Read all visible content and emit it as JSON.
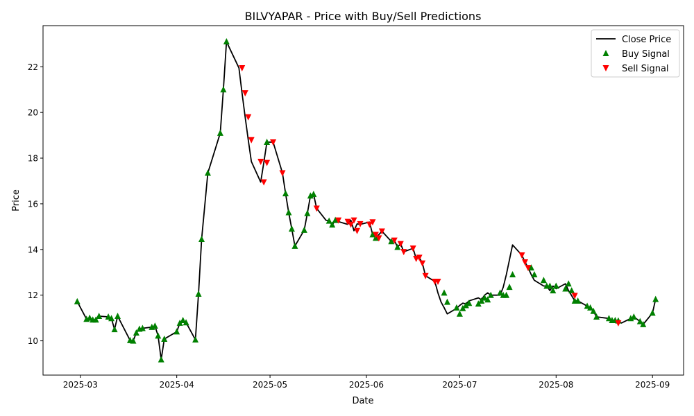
{
  "chart_data": {
    "type": "line",
    "title": "BILVYAPAR - Price with Buy/Sell Predictions",
    "xlabel": "Date",
    "ylabel": "Price",
    "x_ticks": [
      "2025-03",
      "2025-04",
      "2025-05",
      "2025-06",
      "2025-07",
      "2025-08",
      "2025-09"
    ],
    "y_ticks": [
      10,
      12,
      14,
      16,
      18,
      20,
      22
    ],
    "xlim": [
      "2025-02-17",
      "2025-09-11"
    ],
    "ylim": [
      8.5,
      23.8
    ],
    "grid": false,
    "legend_position": "top-right",
    "legend": [
      {
        "label": "Close Price",
        "marker": "line",
        "color": "#000000"
      },
      {
        "label": "Buy Signal",
        "marker": "triangle-up",
        "color": "#008000"
      },
      {
        "label": "Sell Signal",
        "marker": "triangle-down",
        "color": "#ff0000"
      }
    ],
    "series": [
      {
        "name": "Close Price",
        "color": "#000000",
        "x": [
          "2025-02-28",
          "2025-03-03",
          "2025-03-04",
          "2025-03-05",
          "2025-03-06",
          "2025-03-07",
          "2025-03-10",
          "2025-03-11",
          "2025-03-12",
          "2025-03-13",
          "2025-03-17",
          "2025-03-18",
          "2025-03-19",
          "2025-03-20",
          "2025-03-21",
          "2025-03-24",
          "2025-03-25",
          "2025-03-26",
          "2025-03-27",
          "2025-03-28",
          "2025-04-01",
          "2025-04-02",
          "2025-04-03",
          "2025-04-04",
          "2025-04-07",
          "2025-04-08",
          "2025-04-09",
          "2025-04-11",
          "2025-04-15",
          "2025-04-16",
          "2025-04-17",
          "2025-04-21",
          "2025-04-22",
          "2025-04-23",
          "2025-04-24",
          "2025-04-25",
          "2025-04-28",
          "2025-04-29",
          "2025-04-30",
          "2025-05-02",
          "2025-05-05",
          "2025-05-06",
          "2025-05-07",
          "2025-05-08",
          "2025-05-09",
          "2025-05-12",
          "2025-05-13",
          "2025-05-14",
          "2025-05-15",
          "2025-05-16",
          "2025-05-19",
          "2025-05-20",
          "2025-05-21",
          "2025-05-22",
          "2025-05-23",
          "2025-05-26",
          "2025-05-27",
          "2025-05-28",
          "2025-05-29",
          "2025-05-30",
          "2025-06-02",
          "2025-06-03",
          "2025-06-04",
          "2025-06-05",
          "2025-06-06",
          "2025-06-09",
          "2025-06-10",
          "2025-06-11",
          "2025-06-12",
          "2025-06-13",
          "2025-06-16",
          "2025-06-17",
          "2025-06-18",
          "2025-06-19",
          "2025-06-20",
          "2025-06-23",
          "2025-06-24",
          "2025-06-25",
          "2025-06-26",
          "2025-06-27",
          "2025-06-30",
          "2025-07-01",
          "2025-07-02",
          "2025-07-03",
          "2025-07-04",
          "2025-07-07",
          "2025-07-08",
          "2025-07-09",
          "2025-07-10",
          "2025-07-11",
          "2025-07-14",
          "2025-07-15",
          "2025-07-16",
          "2025-07-17",
          "2025-07-18",
          "2025-07-21",
          "2025-07-22",
          "2025-07-23",
          "2025-07-24",
          "2025-07-25",
          "2025-07-28",
          "2025-07-29",
          "2025-07-30",
          "2025-07-31",
          "2025-08-01",
          "2025-08-04",
          "2025-08-05",
          "2025-08-06",
          "2025-08-07",
          "2025-08-08",
          "2025-08-11",
          "2025-08-12",
          "2025-08-13",
          "2025-08-14",
          "2025-08-18",
          "2025-08-19",
          "2025-08-20",
          "2025-08-21",
          "2025-08-22",
          "2025-08-25",
          "2025-08-26",
          "2025-08-28",
          "2025-08-29",
          "2025-09-01",
          "2025-09-02"
        ],
        "y": [
          11.72,
          10.95,
          11.0,
          10.92,
          10.92,
          11.08,
          11.05,
          10.98,
          10.5,
          11.08,
          10.02,
          10.0,
          10.35,
          10.52,
          10.55,
          10.6,
          10.65,
          10.22,
          9.18,
          10.08,
          10.4,
          10.78,
          10.9,
          10.8,
          10.05,
          12.05,
          14.45,
          17.35,
          19.1,
          21.0,
          23.1,
          21.95,
          20.85,
          19.8,
          18.8,
          17.85,
          16.95,
          17.8,
          18.7,
          18.7,
          17.35,
          16.45,
          15.62,
          14.9,
          14.15,
          14.85,
          15.58,
          16.35,
          16.42,
          15.8,
          15.28,
          15.25,
          15.08,
          15.28,
          15.22,
          15.1,
          15.28,
          14.82,
          15.12,
          15.1,
          15.2,
          14.65,
          14.5,
          14.65,
          14.8,
          14.35,
          14.4,
          14.1,
          14.25,
          13.9,
          14.05,
          13.6,
          13.65,
          13.4,
          12.85,
          12.6,
          12.1,
          11.7,
          11.45,
          11.18,
          11.42,
          11.55,
          11.65,
          11.62,
          11.75,
          11.88,
          11.8,
          12.0,
          12.1,
          12.0,
          12.0,
          12.35,
          12.9,
          13.55,
          14.2,
          13.75,
          13.45,
          13.2,
          12.9,
          12.65,
          12.4,
          12.4,
          12.2,
          12.4,
          12.28,
          12.5,
          12.2,
          11.98,
          11.75,
          11.75,
          11.52,
          11.45,
          11.3,
          11.05,
          10.98,
          10.9,
          10.9,
          10.88,
          10.78,
          10.98,
          11.05,
          10.85,
          10.72,
          11.22,
          11.82
        ]
      },
      {
        "name": "Buy Signal",
        "color": "#008000",
        "x": [
          "2025-02-28",
          "2025-03-03",
          "2025-03-04",
          "2025-03-05",
          "2025-03-06",
          "2025-03-07",
          "2025-03-10",
          "2025-03-11",
          "2025-03-12",
          "2025-03-13",
          "2025-03-17",
          "2025-03-18",
          "2025-03-19",
          "2025-03-20",
          "2025-03-21",
          "2025-03-24",
          "2025-03-25",
          "2025-03-26",
          "2025-03-27",
          "2025-03-28",
          "2025-04-01",
          "2025-04-02",
          "2025-04-03",
          "2025-04-04",
          "2025-04-07",
          "2025-04-08",
          "2025-04-09",
          "2025-04-11",
          "2025-04-15",
          "2025-04-16",
          "2025-04-17",
          "2025-04-30",
          "2025-05-06",
          "2025-05-07",
          "2025-05-08",
          "2025-05-09",
          "2025-05-12",
          "2025-05-13",
          "2025-05-14",
          "2025-05-15",
          "2025-05-20",
          "2025-05-21",
          "2025-05-22",
          "2025-06-03",
          "2025-06-04",
          "2025-06-09",
          "2025-06-11",
          "2025-06-26",
          "2025-06-27",
          "2025-06-30",
          "2025-07-01",
          "2025-07-02",
          "2025-07-03",
          "2025-07-04",
          "2025-07-07",
          "2025-07-08",
          "2025-07-09",
          "2025-07-10",
          "2025-07-11",
          "2025-07-14",
          "2025-07-15",
          "2025-07-16",
          "2025-07-17",
          "2025-07-18",
          "2025-07-24",
          "2025-07-25",
          "2025-07-28",
          "2025-07-29",
          "2025-07-30",
          "2025-07-31",
          "2025-08-01",
          "2025-08-04",
          "2025-08-05",
          "2025-08-06",
          "2025-08-07",
          "2025-08-08",
          "2025-08-11",
          "2025-08-12",
          "2025-08-13",
          "2025-08-14",
          "2025-08-18",
          "2025-08-19",
          "2025-08-20",
          "2025-08-21",
          "2025-08-25",
          "2025-08-26",
          "2025-08-28",
          "2025-08-29",
          "2025-09-01",
          "2025-09-02"
        ],
        "y": [
          11.72,
          10.95,
          11.0,
          10.92,
          10.92,
          11.08,
          11.05,
          10.98,
          10.5,
          11.08,
          10.02,
          10.0,
          10.35,
          10.52,
          10.55,
          10.6,
          10.65,
          10.22,
          9.18,
          10.08,
          10.4,
          10.78,
          10.9,
          10.8,
          10.05,
          12.05,
          14.45,
          17.35,
          19.1,
          21.0,
          23.1,
          18.7,
          16.45,
          15.62,
          14.9,
          14.15,
          14.85,
          15.58,
          16.35,
          16.42,
          15.25,
          15.08,
          15.28,
          14.65,
          14.5,
          14.35,
          14.1,
          12.1,
          11.7,
          11.45,
          11.18,
          11.42,
          11.55,
          11.65,
          11.62,
          11.75,
          11.88,
          11.8,
          12.0,
          12.1,
          12.0,
          12.0,
          12.35,
          12.9,
          13.2,
          12.9,
          12.65,
          12.4,
          12.4,
          12.2,
          12.4,
          12.28,
          12.5,
          12.2,
          11.75,
          11.75,
          11.52,
          11.45,
          11.3,
          11.05,
          10.98,
          10.9,
          10.9,
          10.88,
          10.98,
          11.05,
          10.85,
          10.72,
          11.22,
          11.82
        ]
      },
      {
        "name": "Sell Signal",
        "color": "#ff0000",
        "x": [
          "2025-04-22",
          "2025-04-23",
          "2025-04-24",
          "2025-04-25",
          "2025-04-28",
          "2025-04-29",
          "2025-04-30",
          "2025-05-02",
          "2025-05-05",
          "2025-05-16",
          "2025-05-23",
          "2025-05-26",
          "2025-05-27",
          "2025-05-28",
          "2025-05-29",
          "2025-05-30",
          "2025-06-02",
          "2025-06-03",
          "2025-06-04",
          "2025-06-05",
          "2025-06-06",
          "2025-06-10",
          "2025-06-12",
          "2025-06-13",
          "2025-06-16",
          "2025-06-17",
          "2025-06-18",
          "2025-06-19",
          "2025-06-20",
          "2025-06-23",
          "2025-06-24",
          "2025-07-21",
          "2025-07-22",
          "2025-07-23",
          "2025-08-07",
          "2025-08-21"
        ],
        "y": [
          21.95,
          20.85,
          19.8,
          18.8,
          17.85,
          16.95,
          17.8,
          18.7,
          17.35,
          15.8,
          15.28,
          15.22,
          15.1,
          15.28,
          14.82,
          15.12,
          15.1,
          15.2,
          14.65,
          14.5,
          14.8,
          14.4,
          14.25,
          13.9,
          14.05,
          13.6,
          13.65,
          13.4,
          12.85,
          12.6,
          12.6,
          13.75,
          13.45,
          13.2,
          11.98,
          10.78
        ]
      }
    ]
  }
}
